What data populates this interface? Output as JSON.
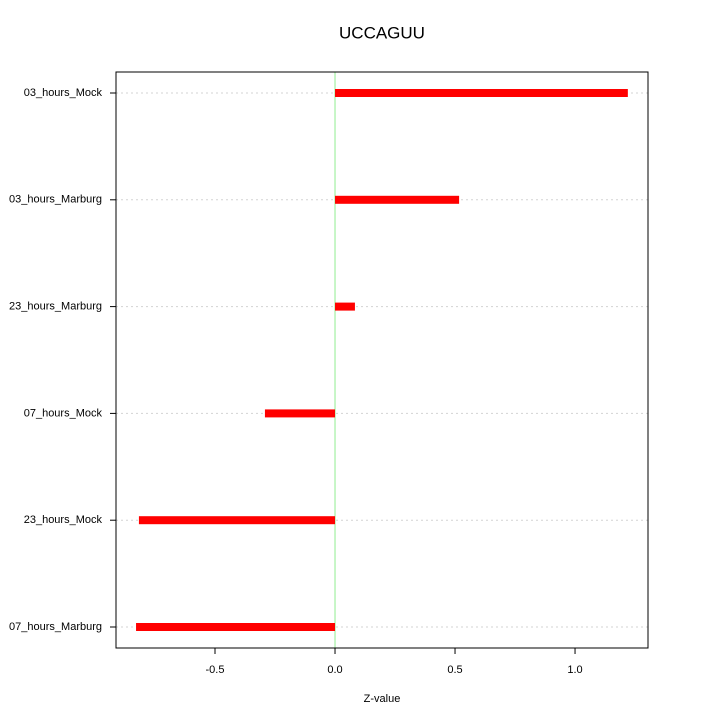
{
  "chart_data": {
    "type": "bar",
    "orientation": "horizontal",
    "title": "UCCAGUU",
    "x_label": "Z-value",
    "categories": [
      "03_hours_Mock",
      "03_hours_Marburg",
      "23_hours_Marburg",
      "07_hours_Mock",
      "23_hours_Mock",
      "07_hours_Marburg"
    ],
    "values": [
      1.22,
      0.517,
      0.083,
      -0.292,
      -0.817,
      -0.829
    ],
    "color": "#ff0000",
    "zero_line_color": "#90ee90",
    "xlim": [
      -0.9125,
      1.304
    ],
    "xticks": [
      -0.5,
      {
        "value": 0,
        "label": "0.0"
      },
      0.5,
      {
        "value": 1,
        "label": "1.0"
      }
    ],
    "grid": true
  }
}
